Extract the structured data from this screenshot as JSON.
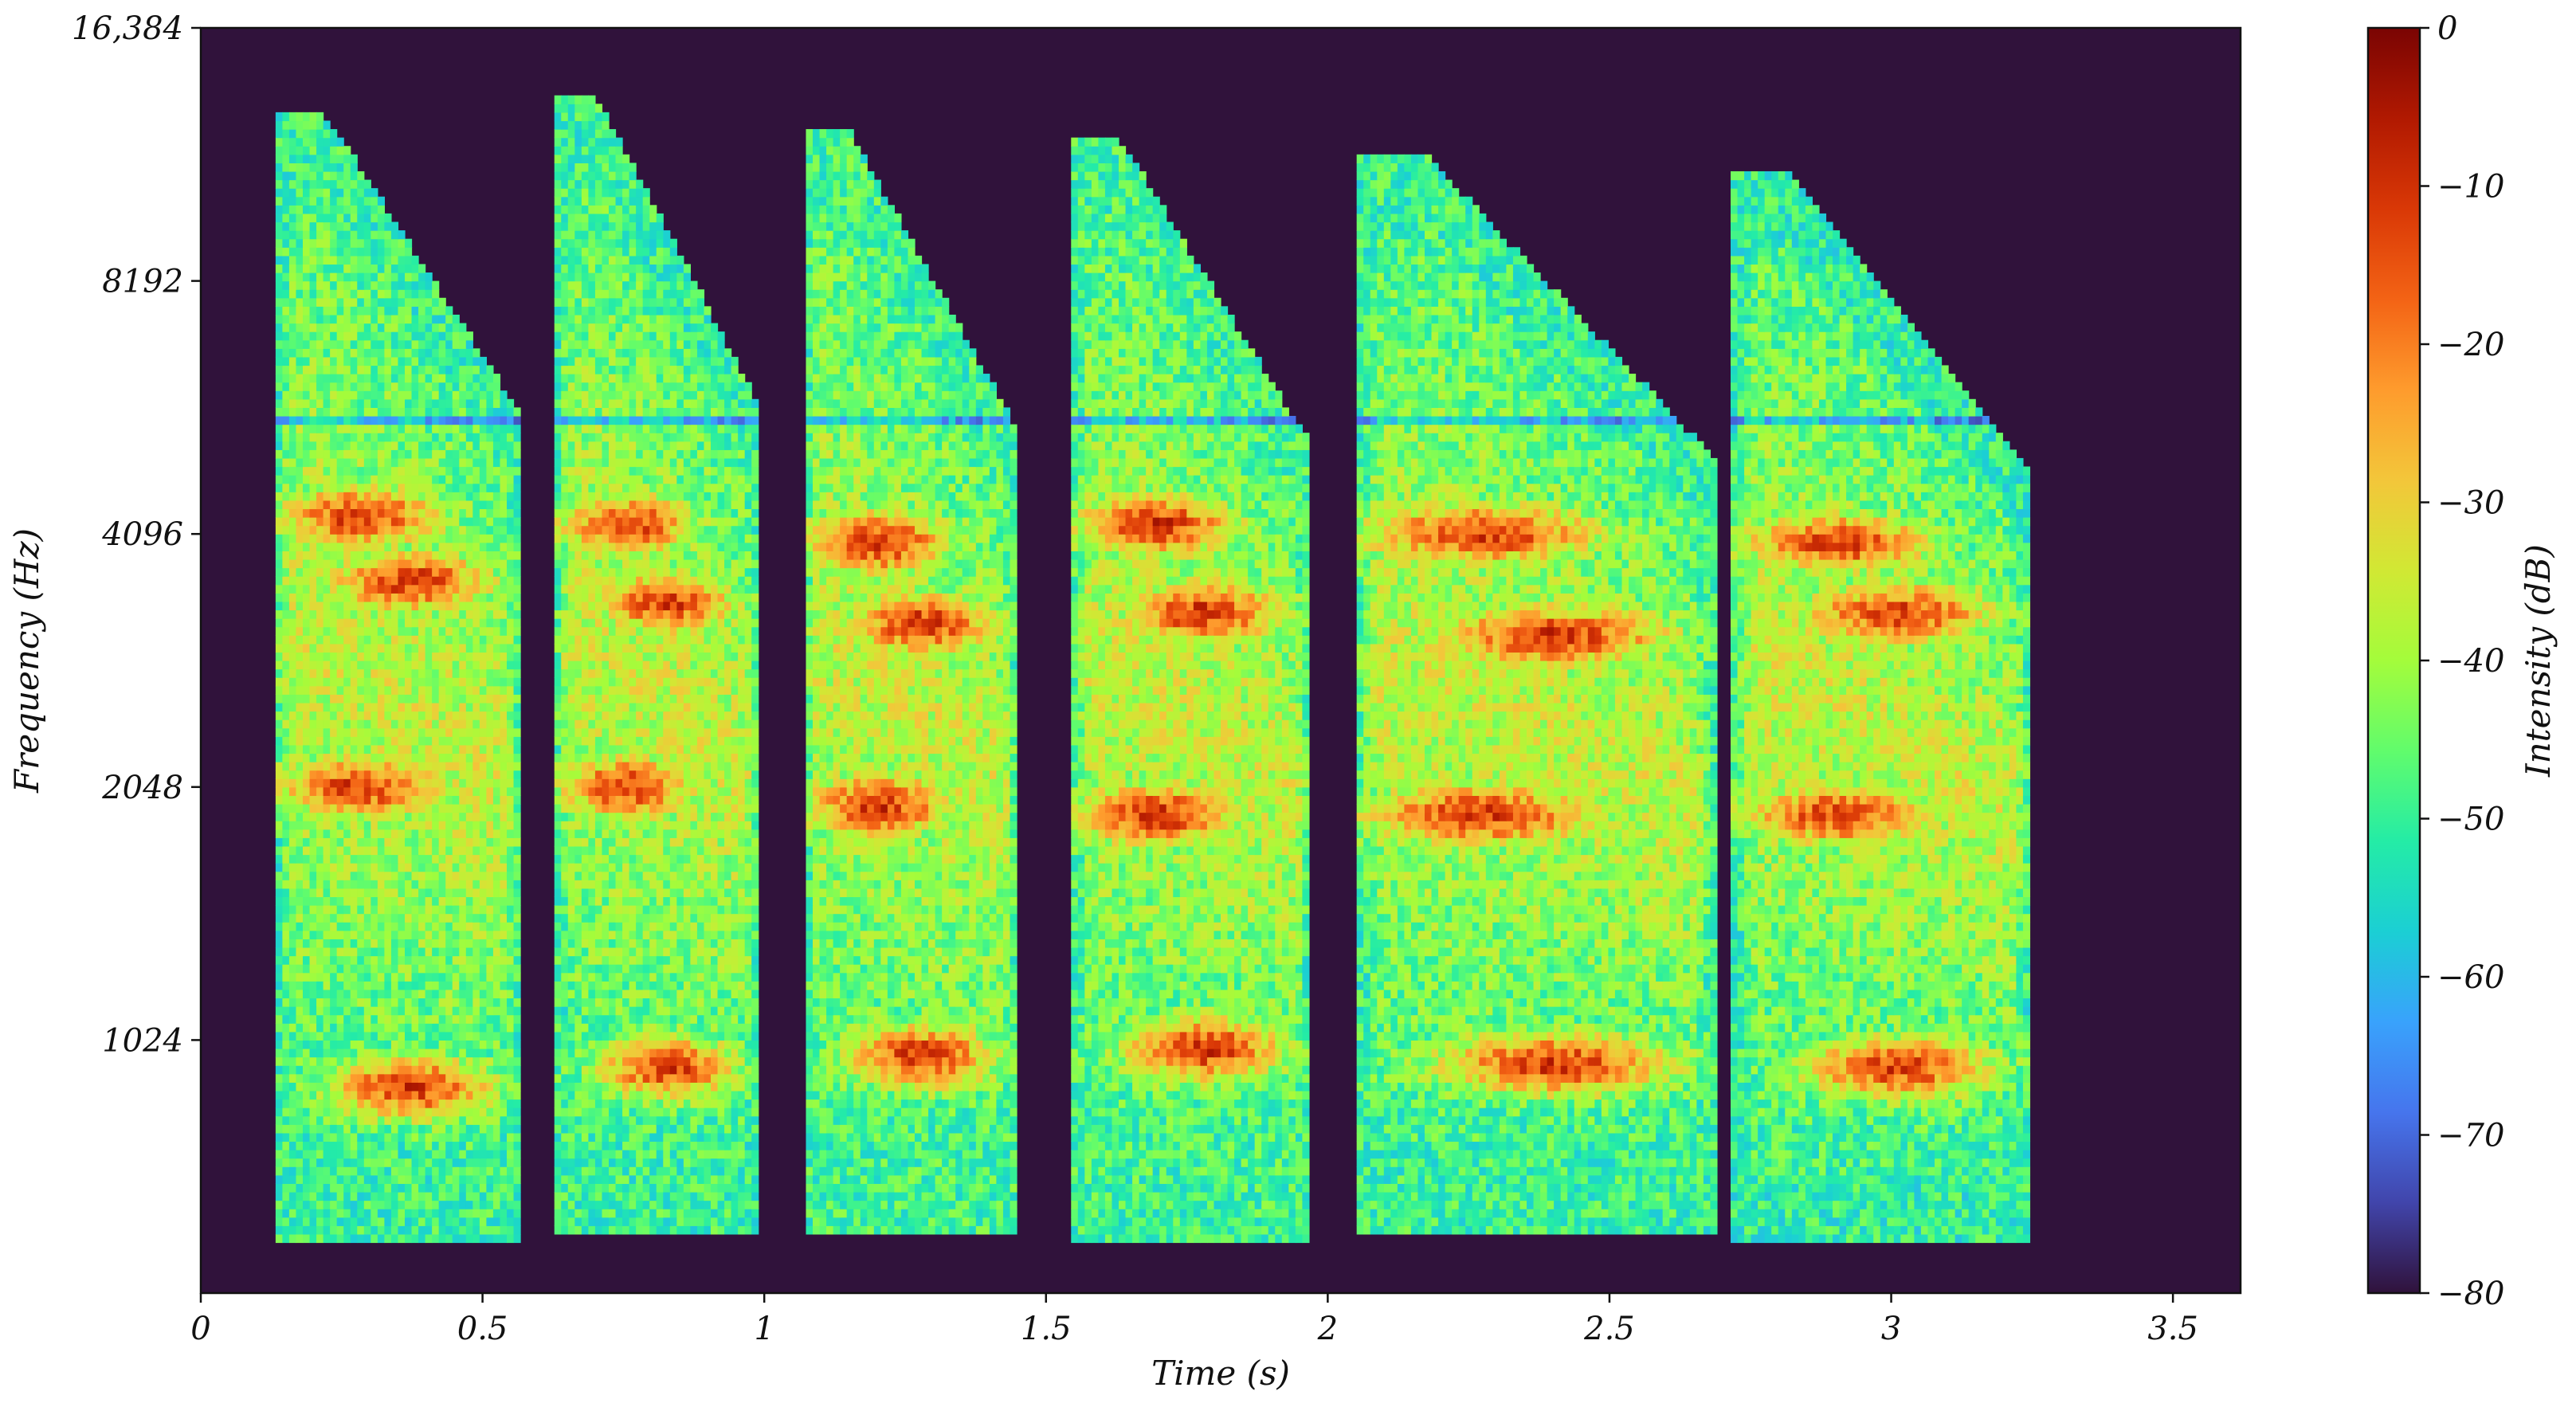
{
  "chart_data": {
    "type": "heatmap",
    "subtype": "spectrogram",
    "xlabel": "Time (s)",
    "ylabel": "Frequency (Hz)",
    "xlim": [
      0,
      3.62
    ],
    "ylim": [
      512,
      16384
    ],
    "y_scale": "log2",
    "x_ticks": [
      0,
      0.5,
      1,
      1.5,
      2,
      2.5,
      3,
      3.5
    ],
    "x_tick_labels": [
      "0",
      "0.5",
      "1",
      "1.5",
      "2",
      "2.5",
      "3",
      "3.5"
    ],
    "y_ticks": [
      1024,
      2048,
      4096,
      8192,
      16384
    ],
    "y_tick_labels": [
      "1024",
      "2048",
      "4096",
      "8192",
      "16,384"
    ],
    "colorbar": {
      "label": "Intensity (dB)",
      "range": [
        -80,
        0
      ],
      "ticks": [
        0,
        -10,
        -20,
        -30,
        -40,
        -50,
        -60,
        -70,
        -80
      ],
      "tick_labels": [
        "0",
        "−10",
        "−20",
        "−30",
        "−40",
        "−50",
        "−60",
        "−70",
        "−80"
      ],
      "colormap": [
        "#30123b",
        "#4145ab",
        "#4675ed",
        "#39a2fc",
        "#1bcfd4",
        "#24eca6",
        "#61fc6c",
        "#a4fc3b",
        "#d1e834",
        "#f3c63a",
        "#fe9b2d",
        "#f36315",
        "#d93806",
        "#b11901",
        "#7a0403"
      ]
    },
    "background_color": "#30123b",
    "grid": false,
    "syllables": [
      {
        "start": 0.13,
        "end": 0.57,
        "low_hz": 700,
        "high_hz": 13000,
        "peak_db": -18,
        "formants_hz": [
          2048,
          3600,
          4300,
          900
        ]
      },
      {
        "start": 0.63,
        "end": 0.99,
        "low_hz": 720,
        "high_hz": 13500,
        "peak_db": -18,
        "formants_hz": [
          2048,
          3400,
          4200,
          950
        ]
      },
      {
        "start": 1.07,
        "end": 1.45,
        "low_hz": 720,
        "high_hz": 12500,
        "peak_db": -17,
        "formants_hz": [
          1950,
          3200,
          4000,
          980
        ]
      },
      {
        "start": 1.55,
        "end": 1.97,
        "low_hz": 700,
        "high_hz": 12000,
        "peak_db": -17,
        "formants_hz": [
          1900,
          3300,
          4200,
          1000
        ]
      },
      {
        "start": 2.05,
        "end": 2.69,
        "low_hz": 720,
        "high_hz": 11500,
        "peak_db": -18,
        "formants_hz": [
          1900,
          3100,
          4100,
          960
        ]
      },
      {
        "start": 2.72,
        "end": 3.25,
        "low_hz": 700,
        "high_hz": 11000,
        "peak_db": -19,
        "formants_hz": [
          1900,
          3300,
          4000,
          950
        ]
      }
    ]
  }
}
